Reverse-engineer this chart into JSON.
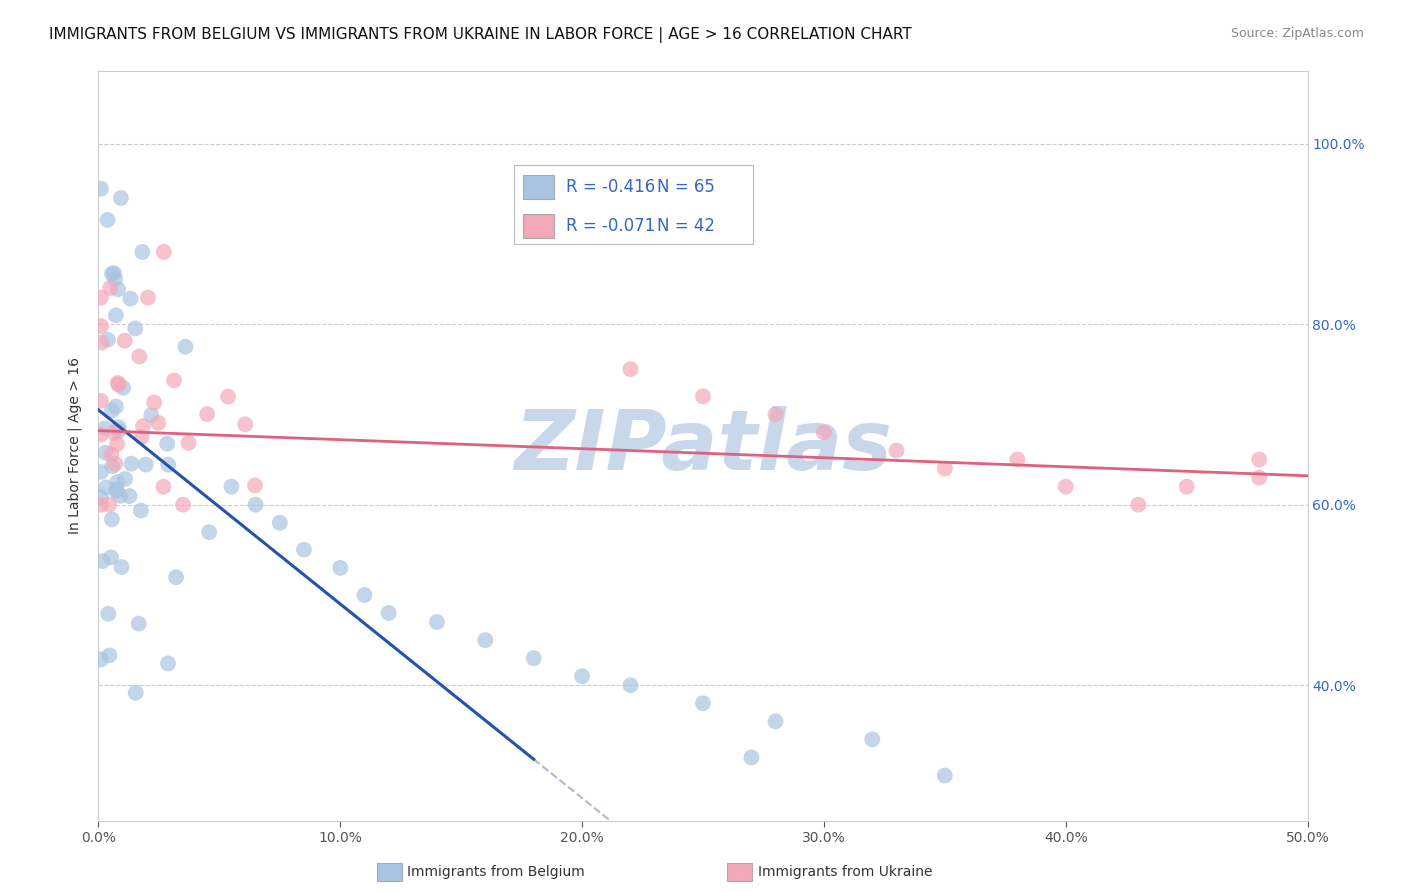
{
  "title": "IMMIGRANTS FROM BELGIUM VS IMMIGRANTS FROM UKRAINE IN LABOR FORCE | AGE > 16 CORRELATION CHART",
  "source": "Source: ZipAtlas.com",
  "xlabel_belgium": "Immigrants from Belgium",
  "xlabel_ukraine": "Immigrants from Ukraine",
  "ylabel": "In Labor Force | Age > 16",
  "xlim": [
    0.0,
    0.5
  ],
  "ylim": [
    0.25,
    1.08
  ],
  "xtick_labels": [
    "0.0%",
    "10.0%",
    "20.0%",
    "30.0%",
    "40.0%",
    "50.0%"
  ],
  "xtick_vals": [
    0.0,
    0.1,
    0.2,
    0.3,
    0.4,
    0.5
  ],
  "ytick_labels": [
    "40.0%",
    "60.0%",
    "80.0%",
    "100.0%"
  ],
  "ytick_vals": [
    0.4,
    0.6,
    0.8,
    1.0
  ],
  "belgium_color": "#a8c4e0",
  "ukraine_color": "#f4a7b9",
  "belgium_line_color": "#2255aa",
  "ukraine_line_color": "#e06080",
  "belgium_ext_color": "#aabbcc",
  "belgium_label": "Immigrants from Belgium",
  "ukraine_label": "Immigrants from Ukraine",
  "R_belgium": -0.416,
  "N_belgium": 65,
  "R_ukraine": -0.071,
  "N_ukraine": 42,
  "watermark": "ZIPatlas",
  "bg_color": "#ffffff",
  "grid_color": "#aaaaaa",
  "title_fontsize": 11,
  "axis_label_fontsize": 10,
  "tick_fontsize": 10,
  "legend_fontsize": 12,
  "watermark_color": "#c8d8ea",
  "watermark_fontsize": 60,
  "legend_text_color": "#3366cc"
}
